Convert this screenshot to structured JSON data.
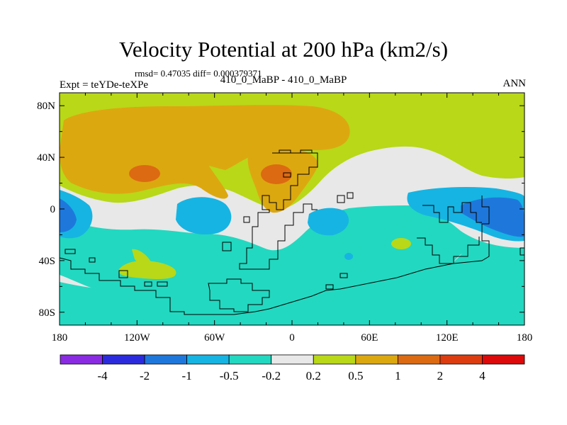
{
  "chart_data": {
    "type": "contour-map",
    "title": "Velocity Potential at 200 hPa (km2/s)",
    "stats_text": "rmsd= 0.47035  diff= 0.000379371",
    "subtitle": "410_0_MaBP - 410_0_MaBP",
    "left_label": "Expt = teYDe-teXPe",
    "right_label": "ANN",
    "stats": {
      "rmsd": 0.47035,
      "diff": 0.000379371
    },
    "lon_range": [
      -180,
      180
    ],
    "lat_range": [
      -90,
      90
    ],
    "x_ticks": [
      {
        "lon": -180,
        "label": "180"
      },
      {
        "lon": -120,
        "label": "120W"
      },
      {
        "lon": -60,
        "label": "60W"
      },
      {
        "lon": 0,
        "label": "0"
      },
      {
        "lon": 60,
        "label": "60E"
      },
      {
        "lon": 120,
        "label": "120E"
      },
      {
        "lon": 180,
        "label": "180"
      }
    ],
    "y_ticks": [
      {
        "lat": 80,
        "label": "80N"
      },
      {
        "lat": 40,
        "label": "40N"
      },
      {
        "lat": 0,
        "label": "0"
      },
      {
        "lat": -40,
        "label": "40S"
      },
      {
        "lat": -80,
        "label": "80S"
      }
    ],
    "levels": [
      -4,
      -2,
      -1,
      -0.5,
      -0.2,
      0.2,
      0.5,
      1,
      2,
      4
    ],
    "level_labels": [
      "-4",
      "-2",
      "-1",
      "-0.5",
      "-0.2",
      "0.2",
      "0.5",
      "1",
      "2",
      "4"
    ],
    "colors": [
      "#8a2be2",
      "#2b2bdd",
      "#1e78dc",
      "#16b4e2",
      "#22d8c0",
      "#e8e8e8",
      "#b8d818",
      "#dca810",
      "#dc6a12",
      "#dc3c10",
      "#dc0a0a"
    ],
    "regions": [
      {
        "name": "positive-weak-north",
        "level": "0.2 to 0.5",
        "color": "#b8d818"
      },
      {
        "name": "positive-moderate-north",
        "level": "0.5 to 1",
        "color": "#dca810"
      },
      {
        "name": "positive-strong-cores",
        "level": "1 to 2",
        "color": "#dc6a12"
      },
      {
        "name": "near-zero-band",
        "level": "-0.2 to 0.2",
        "color": "#e8e8e8"
      },
      {
        "name": "negative-weak-tropics-south",
        "level": "-0.5 to -0.2",
        "color": "#22d8c0"
      },
      {
        "name": "negative-moderate",
        "level": "-1 to -0.5",
        "color": "#16b4e2"
      },
      {
        "name": "negative-strong-cores",
        "level": "-2 to -1",
        "color": "#1e78dc"
      }
    ]
  }
}
